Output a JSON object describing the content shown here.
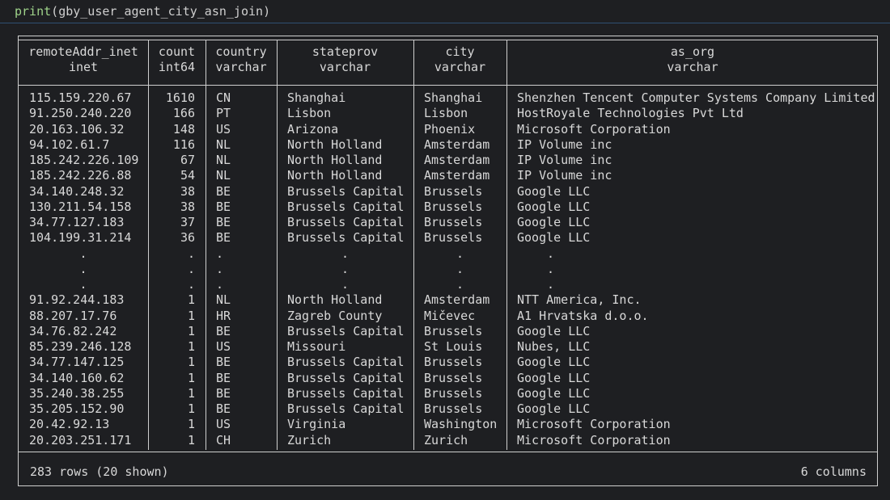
{
  "code": {
    "fn": "print",
    "arg": "gby_user_agent_city_asn_join"
  },
  "columns": [
    {
      "name": "remoteAddr_inet",
      "type": "inet"
    },
    {
      "name": "count",
      "type": "int64"
    },
    {
      "name": "country",
      "type": "varchar"
    },
    {
      "name": "stateprov",
      "type": "varchar"
    },
    {
      "name": "city",
      "type": "varchar"
    },
    {
      "name": "as_org",
      "type": "varchar"
    }
  ],
  "rows_top": [
    [
      "115.159.220.67",
      "1610",
      "CN",
      "Shanghai",
      "Shanghai",
      "Shenzhen Tencent Computer Systems Company Limited"
    ],
    [
      "91.250.240.220",
      "166",
      "PT",
      "Lisbon",
      "Lisbon",
      "HostRoyale Technologies Pvt Ltd"
    ],
    [
      "20.163.106.32",
      "148",
      "US",
      "Arizona",
      "Phoenix",
      "Microsoft Corporation"
    ],
    [
      "94.102.61.7",
      "116",
      "NL",
      "North Holland",
      "Amsterdam",
      "IP Volume inc"
    ],
    [
      "185.242.226.109",
      "67",
      "NL",
      "North Holland",
      "Amsterdam",
      "IP Volume inc"
    ],
    [
      "185.242.226.88",
      "54",
      "NL",
      "North Holland",
      "Amsterdam",
      "IP Volume inc"
    ],
    [
      "34.140.248.32",
      "38",
      "BE",
      "Brussels Capital",
      "Brussels",
      "Google LLC"
    ],
    [
      "130.211.54.158",
      "38",
      "BE",
      "Brussels Capital",
      "Brussels",
      "Google LLC"
    ],
    [
      "34.77.127.183",
      "37",
      "BE",
      "Brussels Capital",
      "Brussels",
      "Google LLC"
    ],
    [
      "104.199.31.214",
      "36",
      "BE",
      "Brussels Capital",
      "Brussels",
      "Google LLC"
    ]
  ],
  "ellipsis": ".",
  "rows_bottom": [
    [
      "91.92.244.183",
      "1",
      "NL",
      "North Holland",
      "Amsterdam",
      "NTT America, Inc."
    ],
    [
      "88.207.17.76",
      "1",
      "HR",
      "Zagreb County",
      "Mičevec",
      "A1 Hrvatska d.o.o."
    ],
    [
      "34.76.82.242",
      "1",
      "BE",
      "Brussels Capital",
      "Brussels",
      "Google LLC"
    ],
    [
      "85.239.246.128",
      "1",
      "US",
      "Missouri",
      "St Louis",
      "Nubes, LLC"
    ],
    [
      "34.77.147.125",
      "1",
      "BE",
      "Brussels Capital",
      "Brussels",
      "Google LLC"
    ],
    [
      "34.140.160.62",
      "1",
      "BE",
      "Brussels Capital",
      "Brussels",
      "Google LLC"
    ],
    [
      "35.240.38.255",
      "1",
      "BE",
      "Brussels Capital",
      "Brussels",
      "Google LLC"
    ],
    [
      "35.205.152.90",
      "1",
      "BE",
      "Brussels Capital",
      "Brussels",
      "Google LLC"
    ],
    [
      "20.42.92.13",
      "1",
      "US",
      "Virginia",
      "Washington",
      "Microsoft Corporation"
    ],
    [
      "20.203.251.171",
      "1",
      "CH",
      "Zurich",
      "Zurich",
      "Microsoft Corporation"
    ]
  ],
  "footer": {
    "rows_text": "283 rows (20 shown)",
    "cols_text": "6 columns"
  },
  "colors": {
    "background": "#1e1f22",
    "text": "#d8d8d8",
    "function": "#9fd38a",
    "cell_border": "#2f4f73"
  }
}
